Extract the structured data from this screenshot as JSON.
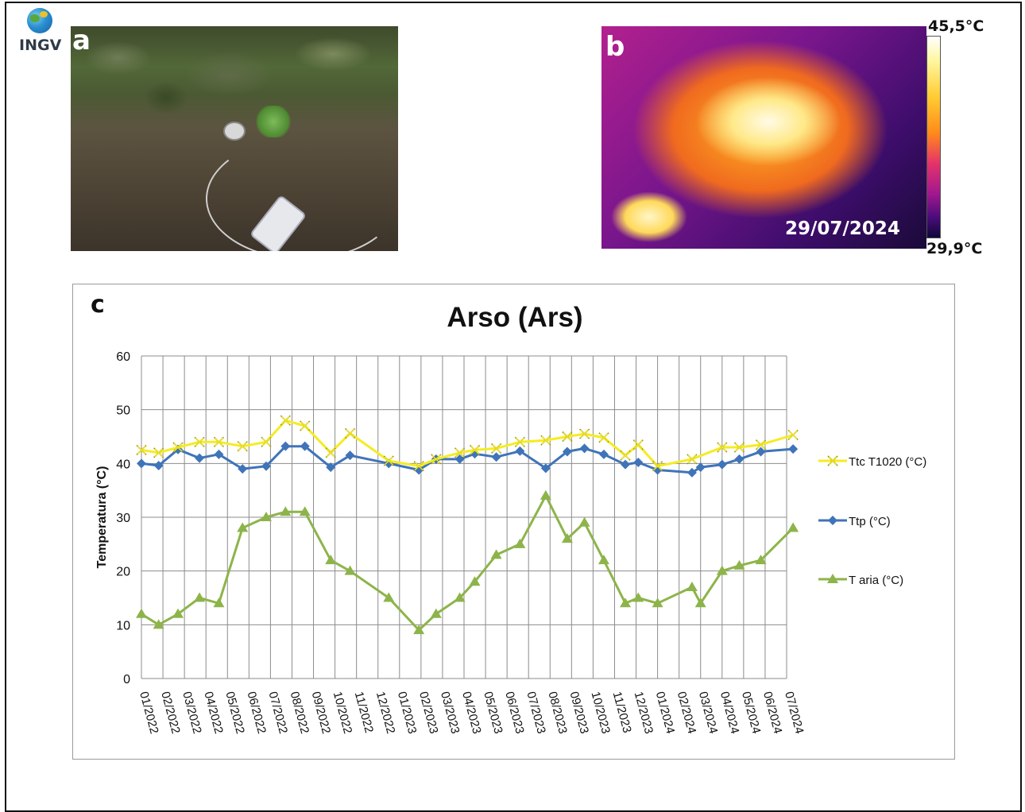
{
  "logo": {
    "text": "INGV"
  },
  "panels": {
    "a": "a",
    "b": "b",
    "c": "c"
  },
  "thermal": {
    "date": "29/07/2024",
    "scale_max": "45,5°C",
    "scale_min": "29,9°C"
  },
  "chart_data": {
    "type": "line",
    "title": "Arso (Ars)",
    "ylabel": "Temperatura (°C)",
    "xlabel": "",
    "ylim": [
      0,
      60
    ],
    "yticks": [
      0,
      10,
      20,
      30,
      40,
      50,
      60
    ],
    "grid": true,
    "legend_placement": "right",
    "categories": [
      "01/2022",
      "02/2022",
      "03/2022",
      "04/2022",
      "05/2022",
      "06/2022",
      "07/2022",
      "08/2022",
      "09/2022",
      "10/2022",
      "11/2022",
      "12/2022",
      "01/2023",
      "02/2023",
      "03/2023",
      "04/2023",
      "05/2023",
      "06/2023",
      "07/2023",
      "08/2023",
      "09/2023",
      "10/2023",
      "11/2023",
      "12/2023",
      "01/2024",
      "02/2024",
      "03/2024",
      "04/2024",
      "05/2024",
      "06/2024",
      "07/2024"
    ],
    "series": [
      {
        "name": "Ttc T1020 (°C)",
        "color": "#f5ec22",
        "marker": "x",
        "points": [
          [
            0.0,
            42.5
          ],
          [
            0.8,
            42
          ],
          [
            1.7,
            43
          ],
          [
            2.7,
            44
          ],
          [
            3.6,
            44
          ],
          [
            4.7,
            43.2
          ],
          [
            5.8,
            44
          ],
          [
            6.7,
            48
          ],
          [
            7.6,
            47
          ],
          [
            8.8,
            42
          ],
          [
            9.7,
            45.6
          ],
          [
            11.5,
            40.5
          ],
          [
            12.9,
            39.5
          ],
          [
            13.7,
            40.8
          ],
          [
            14.8,
            42
          ],
          [
            15.5,
            42.5
          ],
          [
            16.5,
            42.8
          ],
          [
            17.6,
            44
          ],
          [
            18.8,
            44.3
          ],
          [
            19.8,
            45
          ],
          [
            20.6,
            45.5
          ],
          [
            21.5,
            44.8
          ],
          [
            22.5,
            41.5
          ],
          [
            23.1,
            43.5
          ],
          [
            24.0,
            39.5
          ],
          [
            25.6,
            40.8
          ],
          [
            27.0,
            43
          ],
          [
            27.8,
            43
          ],
          [
            28.8,
            43.5
          ],
          [
            30.3,
            45.3
          ]
        ]
      },
      {
        "name": "Ttp (°C)",
        "color": "#3f74b9",
        "marker": "diamond",
        "points": [
          [
            0.0,
            40
          ],
          [
            0.8,
            39.6
          ],
          [
            1.7,
            42.6
          ],
          [
            2.7,
            41
          ],
          [
            3.6,
            41.7
          ],
          [
            4.7,
            39
          ],
          [
            5.8,
            39.5
          ],
          [
            6.7,
            43.2
          ],
          [
            7.6,
            43.2
          ],
          [
            8.8,
            39.3
          ],
          [
            9.7,
            41.5
          ],
          [
            11.5,
            40
          ],
          [
            12.9,
            38.8
          ],
          [
            13.7,
            40.8
          ],
          [
            14.8,
            40.8
          ],
          [
            15.5,
            41.8
          ],
          [
            16.5,
            41.2
          ],
          [
            17.6,
            42.3
          ],
          [
            18.8,
            39.1
          ],
          [
            19.8,
            42.2
          ],
          [
            20.6,
            42.8
          ],
          [
            21.5,
            41.7
          ],
          [
            22.5,
            39.8
          ],
          [
            23.1,
            40.2
          ],
          [
            24.0,
            38.8
          ],
          [
            25.6,
            38.3
          ],
          [
            26.0,
            39.3
          ],
          [
            27.0,
            39.8
          ],
          [
            27.8,
            40.8
          ],
          [
            28.8,
            42.2
          ],
          [
            30.3,
            42.7
          ]
        ]
      },
      {
        "name": "T aria (°C)",
        "color": "#8db44a",
        "marker": "triangle",
        "points": [
          [
            0.0,
            12
          ],
          [
            0.8,
            10
          ],
          [
            1.7,
            12
          ],
          [
            2.7,
            15
          ],
          [
            3.6,
            14
          ],
          [
            4.7,
            28
          ],
          [
            5.8,
            30
          ],
          [
            6.7,
            31
          ],
          [
            7.6,
            31
          ],
          [
            8.8,
            22
          ],
          [
            9.7,
            20
          ],
          [
            11.5,
            15
          ],
          [
            12.9,
            9
          ],
          [
            13.7,
            12
          ],
          [
            14.8,
            15
          ],
          [
            15.5,
            18
          ],
          [
            16.5,
            23
          ],
          [
            17.6,
            25
          ],
          [
            18.8,
            34
          ],
          [
            19.8,
            26
          ],
          [
            20.6,
            29
          ],
          [
            21.5,
            22
          ],
          [
            22.5,
            14
          ],
          [
            23.1,
            15
          ],
          [
            24.0,
            14
          ],
          [
            25.6,
            17
          ],
          [
            26.0,
            14
          ],
          [
            27.0,
            20
          ],
          [
            27.8,
            21
          ],
          [
            28.8,
            22
          ],
          [
            30.3,
            28
          ]
        ]
      }
    ]
  }
}
